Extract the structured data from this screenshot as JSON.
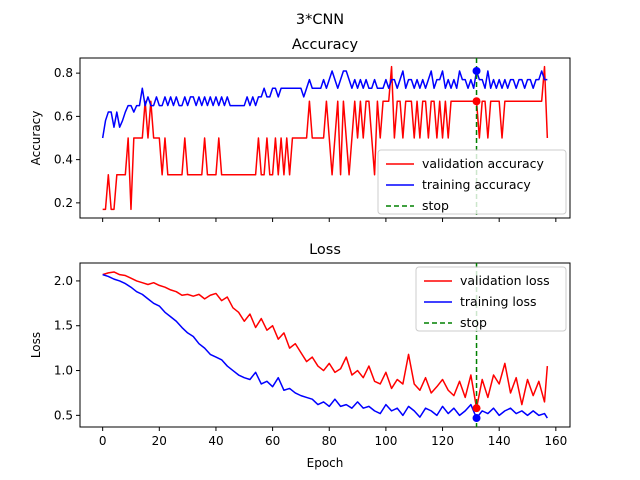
{
  "figure": {
    "suptitle": "3*CNN"
  },
  "chart_data": [
    {
      "type": "line",
      "title": "Accuracy",
      "xlabel": "",
      "ylabel": "Accuracy",
      "xlim": [
        -8,
        165
      ],
      "ylim": [
        0.13,
        0.87
      ],
      "xticks": [
        0,
        20,
        40,
        60,
        80,
        100,
        120,
        140,
        160
      ],
      "yticks": [
        0.2,
        0.4,
        0.6,
        0.8
      ],
      "show_xtick_labels": false,
      "legend": "lower-right",
      "stop_epoch": 132,
      "stop_markers": [
        {
          "series": "training accuracy",
          "x": 132,
          "y": 0.81
        },
        {
          "series": "validation accuracy",
          "x": 132,
          "y": 0.67
        }
      ],
      "series": [
        {
          "name": "validation accuracy",
          "color": "#ff0000",
          "x": [
            0,
            1,
            2,
            3,
            4,
            5,
            6,
            7,
            8,
            9,
            10,
            11,
            12,
            13,
            14,
            15,
            16,
            17,
            18,
            19,
            20,
            21,
            22,
            23,
            24,
            25,
            26,
            27,
            28,
            29,
            30,
            31,
            32,
            33,
            34,
            35,
            36,
            37,
            38,
            39,
            40,
            41,
            42,
            43,
            44,
            45,
            46,
            47,
            48,
            49,
            50,
            51,
            52,
            53,
            54,
            55,
            56,
            57,
            58,
            59,
            60,
            61,
            62,
            63,
            64,
            65,
            66,
            67,
            68,
            69,
            70,
            71,
            72,
            73,
            74,
            75,
            76,
            77,
            78,
            79,
            80,
            81,
            82,
            83,
            84,
            85,
            86,
            87,
            88,
            89,
            90,
            91,
            92,
            93,
            94,
            95,
            96,
            97,
            98,
            99,
            100,
            101,
            102,
            103,
            104,
            105,
            106,
            107,
            108,
            109,
            110,
            111,
            112,
            113,
            114,
            115,
            116,
            117,
            118,
            119,
            120,
            121,
            122,
            123,
            124,
            125,
            126,
            127,
            128,
            129,
            130,
            131,
            132,
            133,
            134,
            135,
            136,
            137,
            138,
            139,
            140,
            141,
            142,
            143,
            144,
            145,
            146,
            147,
            148,
            149,
            150,
            151,
            152,
            153,
            154,
            155,
            156,
            157
          ],
          "values": [
            0.17,
            0.17,
            0.33,
            0.17,
            0.17,
            0.33,
            0.33,
            0.33,
            0.33,
            0.5,
            0.17,
            0.5,
            0.5,
            0.5,
            0.5,
            0.67,
            0.5,
            0.67,
            0.5,
            0.5,
            0.5,
            0.33,
            0.5,
            0.33,
            0.33,
            0.33,
            0.33,
            0.33,
            0.33,
            0.5,
            0.33,
            0.33,
            0.33,
            0.33,
            0.33,
            0.33,
            0.5,
            0.33,
            0.33,
            0.33,
            0.33,
            0.5,
            0.33,
            0.33,
            0.33,
            0.33,
            0.33,
            0.33,
            0.33,
            0.33,
            0.33,
            0.33,
            0.33,
            0.33,
            0.33,
            0.5,
            0.33,
            0.33,
            0.5,
            0.33,
            0.33,
            0.5,
            0.33,
            0.5,
            0.33,
            0.5,
            0.33,
            0.5,
            0.5,
            0.5,
            0.5,
            0.5,
            0.5,
            0.67,
            0.5,
            0.5,
            0.5,
            0.5,
            0.5,
            0.67,
            0.5,
            0.33,
            0.5,
            0.67,
            0.33,
            0.67,
            0.5,
            0.33,
            0.5,
            0.67,
            0.5,
            0.67,
            0.5,
            0.67,
            0.67,
            0.5,
            0.33,
            0.67,
            0.5,
            0.67,
            0.67,
            0.67,
            0.83,
            0.5,
            0.67,
            0.67,
            0.5,
            0.67,
            0.67,
            0.67,
            0.5,
            0.67,
            0.5,
            0.67,
            0.67,
            0.5,
            0.67,
            0.67,
            0.5,
            0.67,
            0.5,
            0.67,
            0.5,
            0.67,
            0.67,
            0.67,
            0.67,
            0.67,
            0.67,
            0.67,
            0.67,
            0.67,
            0.67,
            0.5,
            0.67,
            0.67,
            0.5,
            0.67,
            0.67,
            0.67,
            0.67,
            0.5,
            0.67,
            0.67,
            0.67,
            0.67,
            0.67,
            0.67,
            0.67,
            0.67,
            0.67,
            0.67,
            0.67,
            0.67,
            0.67,
            0.67,
            0.83,
            0.5
          ]
        },
        {
          "name": "training accuracy",
          "color": "#0000ff",
          "x": [
            0,
            1,
            2,
            3,
            4,
            5,
            6,
            7,
            8,
            9,
            10,
            11,
            12,
            13,
            14,
            15,
            16,
            17,
            18,
            19,
            20,
            21,
            22,
            23,
            24,
            25,
            26,
            27,
            28,
            29,
            30,
            31,
            32,
            33,
            34,
            35,
            36,
            37,
            38,
            39,
            40,
            41,
            42,
            43,
            44,
            45,
            46,
            47,
            48,
            49,
            50,
            51,
            52,
            53,
            54,
            55,
            56,
            57,
            58,
            59,
            60,
            61,
            62,
            63,
            64,
            65,
            66,
            67,
            68,
            69,
            70,
            71,
            72,
            73,
            74,
            75,
            76,
            77,
            78,
            79,
            80,
            81,
            82,
            83,
            84,
            85,
            86,
            87,
            88,
            89,
            90,
            91,
            92,
            93,
            94,
            95,
            96,
            97,
            98,
            99,
            100,
            101,
            102,
            103,
            104,
            105,
            106,
            107,
            108,
            109,
            110,
            111,
            112,
            113,
            114,
            115,
            116,
            117,
            118,
            119,
            120,
            121,
            122,
            123,
            124,
            125,
            126,
            127,
            128,
            129,
            130,
            131,
            132,
            133,
            134,
            135,
            136,
            137,
            138,
            139,
            140,
            141,
            142,
            143,
            144,
            145,
            146,
            147,
            148,
            149,
            150,
            151,
            152,
            153,
            154,
            155,
            156,
            157
          ],
          "values": [
            0.5,
            0.58,
            0.62,
            0.62,
            0.55,
            0.62,
            0.55,
            0.58,
            0.62,
            0.65,
            0.65,
            0.62,
            0.65,
            0.65,
            0.73,
            0.65,
            0.69,
            0.65,
            0.65,
            0.69,
            0.65,
            0.65,
            0.69,
            0.65,
            0.69,
            0.65,
            0.69,
            0.65,
            0.65,
            0.69,
            0.65,
            0.69,
            0.69,
            0.65,
            0.69,
            0.65,
            0.69,
            0.65,
            0.69,
            0.65,
            0.69,
            0.65,
            0.69,
            0.65,
            0.69,
            0.65,
            0.65,
            0.65,
            0.65,
            0.65,
            0.65,
            0.69,
            0.65,
            0.69,
            0.65,
            0.69,
            0.69,
            0.73,
            0.69,
            0.69,
            0.73,
            0.73,
            0.69,
            0.73,
            0.73,
            0.73,
            0.73,
            0.73,
            0.73,
            0.73,
            0.73,
            0.69,
            0.73,
            0.77,
            0.73,
            0.73,
            0.73,
            0.73,
            0.77,
            0.73,
            0.77,
            0.81,
            0.77,
            0.73,
            0.77,
            0.81,
            0.81,
            0.77,
            0.73,
            0.77,
            0.73,
            0.77,
            0.73,
            0.77,
            0.73,
            0.73,
            0.77,
            0.73,
            0.73,
            0.73,
            0.77,
            0.73,
            0.77,
            0.77,
            0.73,
            0.77,
            0.81,
            0.73,
            0.77,
            0.77,
            0.73,
            0.77,
            0.73,
            0.77,
            0.73,
            0.77,
            0.81,
            0.73,
            0.77,
            0.77,
            0.81,
            0.73,
            0.77,
            0.73,
            0.77,
            0.73,
            0.81,
            0.77,
            0.77,
            0.73,
            0.77,
            0.73,
            0.81,
            0.77,
            0.77,
            0.73,
            0.81,
            0.73,
            0.77,
            0.73,
            0.77,
            0.73,
            0.77,
            0.73,
            0.77,
            0.77,
            0.73,
            0.77,
            0.77,
            0.73,
            0.77,
            0.77,
            0.73,
            0.77,
            0.77,
            0.81,
            0.77,
            0.77
          ]
        }
      ]
    },
    {
      "type": "line",
      "title": "Loss",
      "xlabel": "Epoch",
      "ylabel": "Loss",
      "xlim": [
        -8,
        165
      ],
      "ylim": [
        0.37,
        2.2
      ],
      "xticks": [
        0,
        20,
        40,
        60,
        80,
        100,
        120,
        140,
        160
      ],
      "yticks": [
        0.5,
        1.0,
        1.5,
        2.0
      ],
      "show_xtick_labels": true,
      "legend": "upper-right",
      "stop_epoch": 132,
      "stop_markers": [
        {
          "series": "validation loss",
          "x": 132,
          "y": 0.58
        },
        {
          "series": "training loss",
          "x": 132,
          "y": 0.47
        }
      ],
      "series": [
        {
          "name": "validation loss",
          "color": "#ff0000",
          "x": [
            0,
            2,
            4,
            6,
            8,
            10,
            12,
            14,
            16,
            18,
            20,
            22,
            24,
            26,
            28,
            30,
            32,
            34,
            36,
            38,
            40,
            42,
            44,
            46,
            48,
            50,
            52,
            54,
            56,
            58,
            60,
            62,
            64,
            66,
            68,
            70,
            72,
            74,
            76,
            78,
            80,
            82,
            84,
            86,
            88,
            90,
            92,
            94,
            96,
            98,
            100,
            102,
            104,
            106,
            108,
            110,
            112,
            114,
            116,
            118,
            120,
            122,
            124,
            126,
            128,
            130,
            132,
            134,
            136,
            138,
            140,
            142,
            144,
            146,
            148,
            150,
            152,
            154,
            156,
            157
          ],
          "values": [
            2.07,
            2.09,
            2.1,
            2.07,
            2.06,
            2.03,
            2.0,
            1.98,
            1.96,
            1.98,
            1.95,
            1.93,
            1.9,
            1.88,
            1.84,
            1.85,
            1.83,
            1.85,
            1.8,
            1.84,
            1.86,
            1.78,
            1.82,
            1.7,
            1.65,
            1.55,
            1.63,
            1.48,
            1.58,
            1.45,
            1.5,
            1.35,
            1.42,
            1.25,
            1.3,
            1.2,
            1.1,
            1.15,
            1.05,
            1.0,
            1.08,
            0.98,
            1.02,
            1.15,
            0.95,
            1.0,
            0.92,
            1.05,
            0.88,
            0.85,
            0.98,
            0.8,
            0.9,
            0.85,
            1.18,
            0.85,
            0.78,
            0.92,
            0.75,
            0.82,
            0.9,
            0.78,
            0.72,
            0.88,
            0.7,
            0.95,
            0.58,
            0.9,
            0.7,
            0.95,
            0.85,
            1.08,
            0.75,
            0.92,
            0.62,
            0.9,
            0.72,
            0.88,
            0.65,
            1.05
          ]
        },
        {
          "name": "training loss",
          "color": "#0000ff",
          "x": [
            0,
            2,
            4,
            6,
            8,
            10,
            12,
            14,
            16,
            18,
            20,
            22,
            24,
            26,
            28,
            30,
            32,
            34,
            36,
            38,
            40,
            42,
            44,
            46,
            48,
            50,
            52,
            54,
            56,
            58,
            60,
            62,
            64,
            66,
            68,
            70,
            72,
            74,
            76,
            78,
            80,
            82,
            84,
            86,
            88,
            90,
            92,
            94,
            96,
            98,
            100,
            102,
            104,
            106,
            108,
            110,
            112,
            114,
            116,
            118,
            120,
            122,
            124,
            126,
            128,
            130,
            132,
            134,
            136,
            138,
            140,
            142,
            144,
            146,
            148,
            150,
            152,
            154,
            156,
            157
          ],
          "values": [
            2.07,
            2.05,
            2.02,
            2.0,
            1.97,
            1.93,
            1.88,
            1.85,
            1.8,
            1.75,
            1.72,
            1.65,
            1.6,
            1.55,
            1.48,
            1.42,
            1.38,
            1.3,
            1.25,
            1.18,
            1.15,
            1.12,
            1.05,
            1.0,
            0.95,
            0.92,
            0.9,
            0.98,
            0.85,
            0.88,
            0.82,
            0.92,
            0.78,
            0.8,
            0.75,
            0.72,
            0.7,
            0.68,
            0.62,
            0.65,
            0.6,
            0.68,
            0.6,
            0.62,
            0.58,
            0.65,
            0.58,
            0.6,
            0.55,
            0.52,
            0.62,
            0.55,
            0.58,
            0.5,
            0.6,
            0.55,
            0.48,
            0.58,
            0.55,
            0.5,
            0.6,
            0.52,
            0.58,
            0.5,
            0.55,
            0.62,
            0.47,
            0.55,
            0.52,
            0.58,
            0.5,
            0.55,
            0.58,
            0.52,
            0.55,
            0.5,
            0.55,
            0.5,
            0.52,
            0.47
          ]
        }
      ]
    }
  ],
  "legend_stop_label": "stop",
  "colors": {
    "stop_line": "#008000",
    "axes": "#000000",
    "background": "#ffffff"
  }
}
